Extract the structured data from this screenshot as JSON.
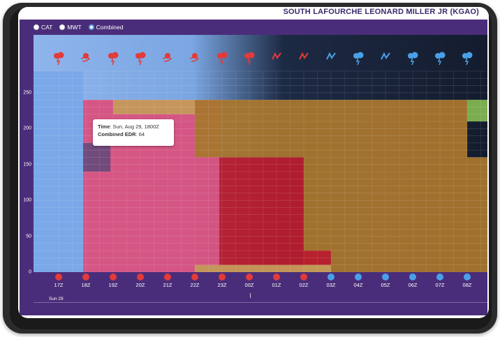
{
  "header": {
    "title": "SOUTH LAFOURCHE LEONARD MILLER JR (KGAO)"
  },
  "toggle": {
    "options": [
      {
        "label": "CAT",
        "selected": false
      },
      {
        "label": "MWT",
        "selected": false
      },
      {
        "label": "Combined",
        "selected": true
      }
    ]
  },
  "tooltip": {
    "time_label": "Time",
    "time_value": ": Sun, Aug 29, 1800Z",
    "edr_label": "Combined EDR",
    "edr_value": ": 64"
  },
  "date_label": "Sun 29",
  "colors": {
    "app_bg": "#4a2d7a",
    "level_low": "#7aa8e8",
    "level_pink": "#d9517e",
    "level_red": "#b81c2e",
    "level_brown": "#a8762e",
    "level_tan": "#c49a5a",
    "level_green": "#7fb552",
    "level_purple": "#6a4a7a",
    "icon_red": "#e33a3a",
    "icon_blue": "#4aa0e8"
  },
  "chart_data": {
    "type": "heatmap",
    "y_ticks": [
      "250",
      "200",
      "150",
      "100",
      "50",
      "0"
    ],
    "ylim": [
      0,
      280
    ],
    "hours": [
      "17Z",
      "18Z",
      "19Z",
      "20Z",
      "21Z",
      "22Z",
      "23Z",
      "00Z",
      "01Z",
      "02Z",
      "03Z",
      "04Z",
      "05Z",
      "06Z",
      "07Z",
      "08Z"
    ],
    "hour_status": [
      "red",
      "red",
      "red",
      "red",
      "red",
      "red",
      "red",
      "red",
      "red",
      "red",
      "blue",
      "blue",
      "blue",
      "blue",
      "blue",
      "blue"
    ],
    "weather_icons": [
      "storm-icon",
      "wind-icon",
      "storm-icon",
      "storm-icon",
      "wind-icon",
      "wind-icon",
      "storm-icon",
      "storm-icon",
      "turbulence-icon",
      "turbulence-icon",
      "turbulence-icon",
      "storm-icon",
      "turbulence-icon",
      "storm-icon",
      "storm-icon",
      "storm-icon"
    ],
    "regions": [
      {
        "level": "low",
        "x0": 16.5,
        "x1": 17.9,
        "y0": 0,
        "y1": 280
      },
      {
        "level": "pink",
        "x0": 17.9,
        "x1": 22.9,
        "y0": 0,
        "y1": 240
      },
      {
        "level": "tan",
        "x0": 19.0,
        "x1": 22.0,
        "y0": 220,
        "y1": 240
      },
      {
        "level": "brown",
        "x0": 22.0,
        "x1": 32.0,
        "y0": 160,
        "y1": 240
      },
      {
        "level": "red",
        "x0": 22.9,
        "x1": 26.0,
        "y0": 0,
        "y1": 160
      },
      {
        "level": "brown",
        "x0": 26.0,
        "x1": 33.0,
        "y0": 0,
        "y1": 160
      },
      {
        "level": "red",
        "x0": 26.0,
        "x1": 27.0,
        "y0": 10,
        "y1": 30
      },
      {
        "level": "tan",
        "x0": 22.0,
        "x1": 27.0,
        "y0": 0,
        "y1": 10
      },
      {
        "level": "green",
        "x0": 32.0,
        "x1": 33.0,
        "y0": 210,
        "y1": 240
      },
      {
        "level": "purple",
        "x0": 17.9,
        "x1": 18.9,
        "y0": 140,
        "y1": 180
      }
    ]
  }
}
